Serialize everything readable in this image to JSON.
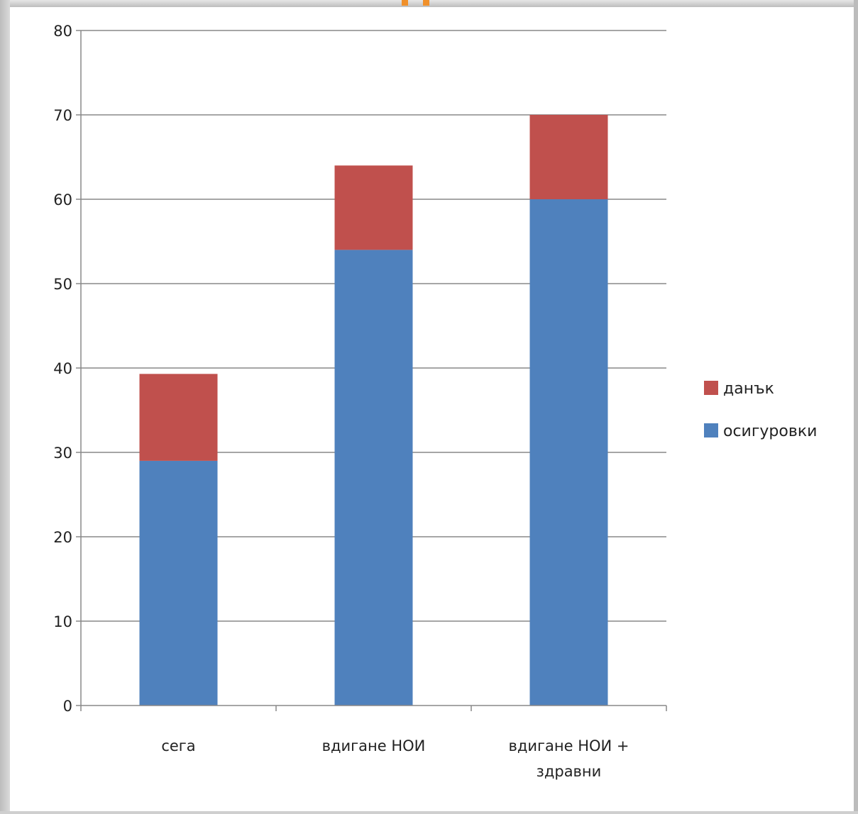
{
  "colors": {
    "series_1": "#4f81bd",
    "series_2": "#c0504d",
    "gridline": "#888888",
    "accent_orange": "#f0902a"
  },
  "chart_data": {
    "type": "bar",
    "stacked": true,
    "title": "",
    "xlabel": "",
    "ylabel": "",
    "categories": [
      {
        "lines": [
          "сега"
        ]
      },
      {
        "lines": [
          "вдигане НОИ"
        ]
      },
      {
        "lines": [
          "вдигане НОИ +",
          "здравни"
        ]
      }
    ],
    "series": [
      {
        "name": "осигуровки",
        "color": "#4f81bd",
        "values": [
          29,
          54,
          60
        ]
      },
      {
        "name": "данък",
        "color": "#c0504d",
        "values": [
          10.3,
          10,
          10
        ]
      }
    ],
    "ylim": [
      0,
      80
    ],
    "yticks": [
      "0",
      "10",
      "20",
      "30",
      "40",
      "50",
      "60",
      "70",
      "80"
    ],
    "grid": true,
    "legend": {
      "position": "right",
      "items": [
        {
          "label": "данък",
          "color": "#c0504d"
        },
        {
          "label": "осигуровки",
          "color": "#4f81bd"
        }
      ]
    }
  }
}
